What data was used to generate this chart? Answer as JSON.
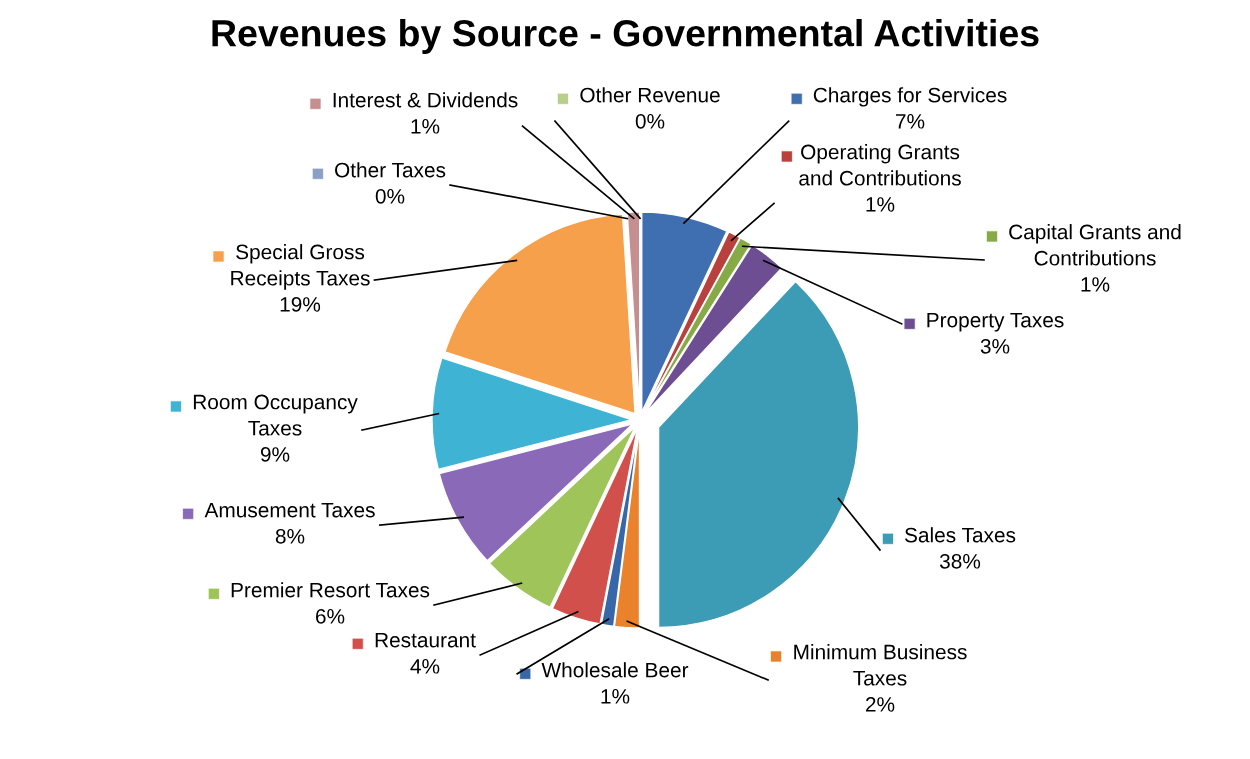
{
  "chart_data": {
    "type": "pie",
    "title": "Revenues by Source - Governmental Activities",
    "categories": [
      "Charges for Services",
      "Operating Grants and Contributions",
      "Capital Grants and Contributions",
      "Property Taxes",
      "Sales Taxes",
      "Minimum Business Taxes",
      "Wholesale Beer",
      "Restaurant",
      "Premier Resort Taxes",
      "Amusement Taxes",
      "Room Occupancy Taxes",
      "Special Gross Receipts Taxes",
      "Other Taxes",
      "Interest & Dividends",
      "Other Revenue"
    ],
    "values": [
      7,
      1,
      1,
      3,
      38,
      2,
      1,
      4,
      6,
      8,
      9,
      19,
      0,
      1,
      0
    ],
    "value_labels": [
      "7%",
      "1%",
      "1%",
      "3%",
      "38%",
      "2%",
      "1%",
      "4%",
      "6%",
      "8%",
      "9%",
      "19%",
      "0%",
      "1%",
      "0%"
    ],
    "colors": [
      "#3f6fb0",
      "#b8403d",
      "#86aa45",
      "#6e4e93",
      "#3c9bb5",
      "#e9822b",
      "#3767a8",
      "#d2504c",
      "#9ec45a",
      "#8a6ab8",
      "#3fb3d3",
      "#f7a04c",
      "#8aa0c4",
      "#c58f8f",
      "#b8cf8c"
    ],
    "legend": true
  }
}
